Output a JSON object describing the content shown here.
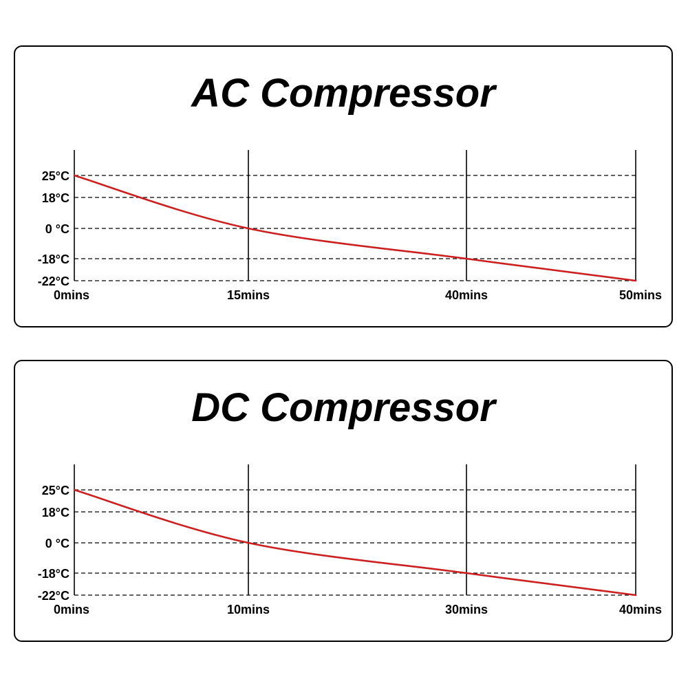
{
  "chart_data": [
    {
      "type": "line",
      "title": "AC Compressor",
      "x_tick_labels": [
        "0mins",
        "15mins",
        "40mins",
        "50mins"
      ],
      "y_tick_labels": [
        "25°C",
        "18°C",
        "0 °C",
        "-18°C",
        "-22°C"
      ],
      "y_levels": [
        25,
        18,
        0,
        -18,
        -22
      ],
      "series": [
        {
          "x": [
            0,
            15,
            40,
            50
          ],
          "y": [
            25,
            0,
            -18,
            -22
          ]
        }
      ],
      "line_color": "#cc1f1f",
      "grid": "dashed horizontal at y ticks, solid vertical at x ticks"
    },
    {
      "type": "line",
      "title": "DC Compressor",
      "x_tick_labels": [
        "0mins",
        "10mins",
        "30mins",
        "40mins"
      ],
      "y_tick_labels": [
        "25°C",
        "18°C",
        "0 °C",
        "-18°C",
        "-22°C"
      ],
      "y_levels": [
        25,
        18,
        0,
        -18,
        -22
      ],
      "series": [
        {
          "x": [
            0,
            10,
            30,
            40
          ],
          "y": [
            25,
            0,
            -18,
            -22
          ]
        }
      ],
      "line_color": "#cc1f1f",
      "grid": "dashed horizontal at y ticks, solid vertical at x ticks"
    }
  ]
}
